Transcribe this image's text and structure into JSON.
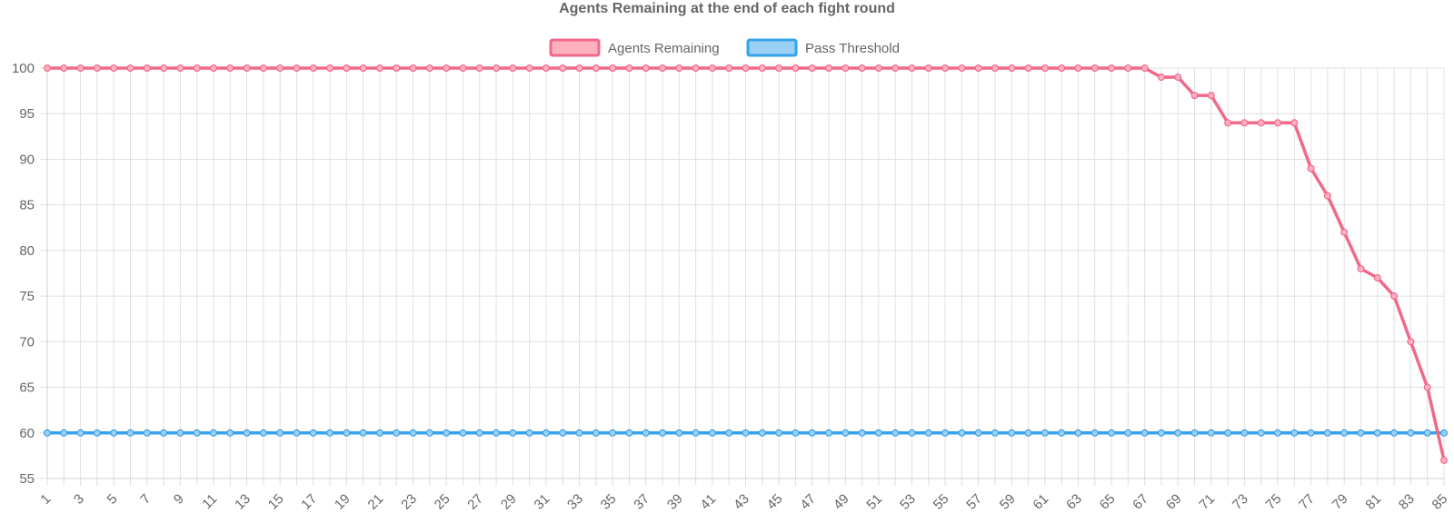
{
  "chart_data": {
    "type": "line",
    "title": "Agents Remaining at the end of each fight round",
    "xlabel": "",
    "ylabel": "",
    "ylim": [
      55,
      100
    ],
    "y_ticks": [
      100,
      95,
      90,
      85,
      80,
      75,
      70,
      65,
      60,
      55
    ],
    "x_tick_labels": [
      "1",
      "3",
      "5",
      "7",
      "9",
      "11",
      "13",
      "15",
      "17",
      "19",
      "21",
      "23",
      "25",
      "27",
      "29",
      "31",
      "33",
      "35",
      "37",
      "39",
      "41",
      "43",
      "45",
      "47",
      "49",
      "51",
      "53",
      "55",
      "57",
      "59",
      "61",
      "63",
      "65",
      "67",
      "69",
      "71",
      "73",
      "75",
      "77",
      "79",
      "81",
      "83",
      "85"
    ],
    "grid": true,
    "legend_position": "top",
    "x": [
      1,
      2,
      3,
      4,
      5,
      6,
      7,
      8,
      9,
      10,
      11,
      12,
      13,
      14,
      15,
      16,
      17,
      18,
      19,
      20,
      21,
      22,
      23,
      24,
      25,
      26,
      27,
      28,
      29,
      30,
      31,
      32,
      33,
      34,
      35,
      36,
      37,
      38,
      39,
      40,
      41,
      42,
      43,
      44,
      45,
      46,
      47,
      48,
      49,
      50,
      51,
      52,
      53,
      54,
      55,
      56,
      57,
      58,
      59,
      60,
      61,
      62,
      63,
      64,
      65,
      66,
      67,
      68,
      69,
      70,
      71,
      72,
      73,
      74,
      75,
      76,
      77,
      78,
      79,
      80,
      81,
      82,
      83,
      84,
      85
    ],
    "series": [
      {
        "name": "Agents Remaining",
        "color": "#f0698b",
        "fill_color": "#ffb1c1",
        "values": [
          100,
          100,
          100,
          100,
          100,
          100,
          100,
          100,
          100,
          100,
          100,
          100,
          100,
          100,
          100,
          100,
          100,
          100,
          100,
          100,
          100,
          100,
          100,
          100,
          100,
          100,
          100,
          100,
          100,
          100,
          100,
          100,
          100,
          100,
          100,
          100,
          100,
          100,
          100,
          100,
          100,
          100,
          100,
          100,
          100,
          100,
          100,
          100,
          100,
          100,
          100,
          100,
          100,
          100,
          100,
          100,
          100,
          100,
          100,
          100,
          100,
          100,
          100,
          100,
          100,
          100,
          100,
          99,
          99,
          97,
          97,
          94,
          94,
          94,
          94,
          94,
          89,
          86,
          82,
          78,
          77,
          75,
          70,
          65,
          57
        ]
      },
      {
        "name": "Pass Threshold",
        "color": "#36a2eb",
        "fill_color": "#9ad0f5",
        "values": [
          60,
          60,
          60,
          60,
          60,
          60,
          60,
          60,
          60,
          60,
          60,
          60,
          60,
          60,
          60,
          60,
          60,
          60,
          60,
          60,
          60,
          60,
          60,
          60,
          60,
          60,
          60,
          60,
          60,
          60,
          60,
          60,
          60,
          60,
          60,
          60,
          60,
          60,
          60,
          60,
          60,
          60,
          60,
          60,
          60,
          60,
          60,
          60,
          60,
          60,
          60,
          60,
          60,
          60,
          60,
          60,
          60,
          60,
          60,
          60,
          60,
          60,
          60,
          60,
          60,
          60,
          60,
          60,
          60,
          60,
          60,
          60,
          60,
          60,
          60,
          60,
          60,
          60,
          60,
          60,
          60,
          60,
          60,
          60,
          60
        ]
      }
    ]
  }
}
